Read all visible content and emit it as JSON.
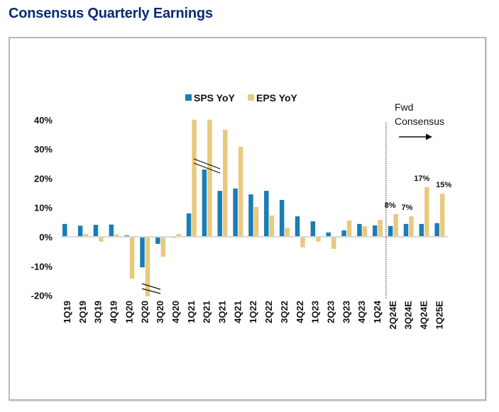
{
  "page": {
    "title": "Consensus Quarterly Earnings"
  },
  "colors": {
    "sps": "#1a7db5",
    "eps": "#e9c97e",
    "axis": "#d9d9d9",
    "title": "#0b2a73"
  },
  "chart_data": {
    "type": "bar",
    "title": "Consensus Quarterly Earnings",
    "xlabel": "",
    "ylabel": "",
    "ylim": [
      -20,
      40
    ],
    "yticks": [
      40,
      30,
      20,
      10,
      0,
      -10,
      -20
    ],
    "ytick_labels": [
      "40%",
      "30%",
      "20%",
      "10%",
      "0%",
      "-10%",
      "-20%"
    ],
    "legend": {
      "position": "top-center",
      "entries": [
        "SPS YoY",
        "EPS YoY"
      ]
    },
    "grid": false,
    "categories": [
      "1Q19",
      "2Q19",
      "3Q19",
      "4Q19",
      "1Q20",
      "2Q20",
      "3Q20",
      "4Q20",
      "1Q21",
      "2Q21",
      "3Q21",
      "4Q21",
      "1Q22",
      "2Q22",
      "3Q22",
      "4Q22",
      "1Q23",
      "2Q23",
      "3Q23",
      "4Q23",
      "1Q24",
      "2Q24E",
      "3Q24E",
      "4Q24E",
      "1Q25E"
    ],
    "series": [
      {
        "name": "SPS YoY",
        "values": [
          4.4,
          3.8,
          4.1,
          4.2,
          0.5,
          -10.4,
          -2.4,
          -0.3,
          8.0,
          23.0,
          15.7,
          16.5,
          14.5,
          15.7,
          12.6,
          7.0,
          5.3,
          1.5,
          2.2,
          4.4,
          3.9,
          3.7,
          4.4,
          4.4,
          4.7
        ]
      },
      {
        "name": "EPS YoY",
        "values": [
          0.2,
          1.0,
          -1.6,
          0.9,
          -14.3,
          -20.3,
          -6.8,
          1.0,
          40.0,
          40.0,
          36.6,
          30.7,
          10.2,
          7.3,
          3.1,
          -3.6,
          -1.6,
          -4.1,
          5.6,
          3.6,
          5.8,
          7.8,
          7.0,
          17.0,
          14.8
        ]
      }
    ],
    "axis_breaks": [
      {
        "category": "1Q21-2Q21",
        "series": "EPS YoY",
        "note": "bars truncated at 40%"
      },
      {
        "category": "2Q20",
        "series": "EPS YoY",
        "note": "bar truncated at -20%"
      }
    ],
    "data_labels": [
      {
        "category": "2Q24E",
        "series": "EPS YoY",
        "text": "8%"
      },
      {
        "category": "3Q24E",
        "series": "EPS YoY",
        "text": "7%"
      },
      {
        "category": "4Q24E",
        "series": "EPS YoY",
        "text": "17%"
      },
      {
        "category": "1Q25E",
        "series": "EPS YoY",
        "text": "15%"
      }
    ],
    "annotations": {
      "forecast_divider_after": "1Q24",
      "forecast_text_line1": "Fwd",
      "forecast_text_line2": "Consensus",
      "forecast_arrow": "right-arrow"
    }
  }
}
